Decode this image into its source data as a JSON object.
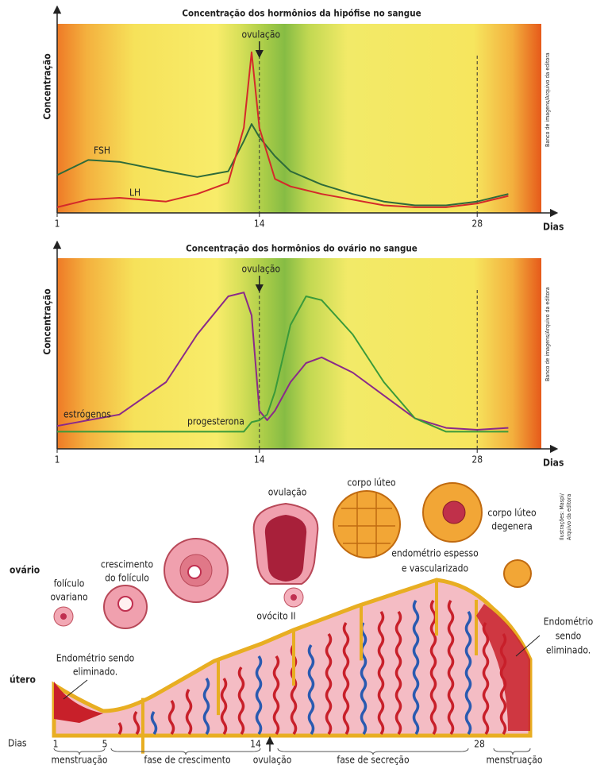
{
  "chart_data": [
    {
      "type": "line",
      "title": "Concentração dos hormônios da hipófise no sangue",
      "y_label": "Concentração",
      "x_label": "Dias",
      "annotation": "ovulação",
      "credit": "Banco de imagens/Arquivo da editora",
      "x": [
        1,
        3,
        5,
        8,
        10,
        12,
        13,
        13.5,
        14,
        15,
        16,
        18,
        20,
        22,
        24,
        26,
        28,
        30
      ],
      "series": [
        {
          "name": "FSH",
          "color": "#2e6b3a",
          "values": [
            20,
            28,
            27,
            22,
            19,
            22,
            38,
            47,
            40,
            30,
            22,
            15,
            10,
            6,
            4,
            4,
            6,
            10
          ]
        },
        {
          "name": "LH",
          "color": "#d42a2a",
          "values": [
            3,
            7,
            8,
            6,
            10,
            16,
            45,
            85,
            45,
            18,
            14,
            10,
            7,
            4,
            3,
            3,
            5,
            9
          ]
        }
      ],
      "xlim": [
        1,
        31
      ],
      "ylim": [
        0,
        100
      ],
      "xticks": [
        1,
        14,
        28
      ]
    },
    {
      "type": "line",
      "title": "Concentração dos hormônios do ovário no sangue",
      "y_label": "Concentração",
      "x_label": "Dias",
      "annotation": "ovulação",
      "credit": "Banco de imagens/Arquivo da editora",
      "x": [
        1,
        5,
        8,
        10,
        12,
        13,
        13.5,
        14,
        14.5,
        15,
        16,
        17,
        18,
        20,
        22,
        24,
        26,
        28,
        30
      ],
      "series": [
        {
          "name": "estrógenos",
          "color": "#8a2a8a",
          "values": [
            12,
            18,
            35,
            60,
            80,
            82,
            70,
            20,
            15,
            20,
            35,
            45,
            48,
            40,
            28,
            16,
            11,
            10,
            11
          ]
        },
        {
          "name": "progesterona",
          "color": "#3a9a3a",
          "values": [
            9,
            9,
            9,
            9,
            9,
            9,
            14,
            15,
            18,
            30,
            65,
            80,
            78,
            60,
            35,
            16,
            9,
            9,
            9
          ]
        }
      ],
      "xlim": [
        1,
        31
      ],
      "ylim": [
        0,
        100
      ],
      "xticks": [
        1,
        14,
        28
      ]
    }
  ],
  "diagram": {
    "row_labels": {
      "ovary": "ovário",
      "uterus": "útero",
      "days": "Dias"
    },
    "labels": {
      "follicle": [
        "folículo",
        "ovariano"
      ],
      "growth": [
        "crescimento",
        "do folículo"
      ],
      "ovulation": "ovulação",
      "oocyte": "ovócito II",
      "corpus": "corpo lúteo",
      "corpus_degen": [
        "corpo lúteo",
        "degenera"
      ],
      "endometrium": [
        "endométrio espesso",
        "e vascularizado"
      ],
      "shed_left": [
        "Endométrio sendo",
        "eliminado."
      ],
      "shed_right": [
        "Endométrio",
        "sendo",
        "eliminado."
      ]
    },
    "days": [
      1,
      5,
      14,
      28
    ],
    "phases": [
      "menstruação",
      "fase de crescimento",
      "ovulação",
      "fase de secreção",
      "menstruação"
    ],
    "credit": [
      "Ilustrações: Maspi/",
      "Arquivo da editora"
    ]
  }
}
